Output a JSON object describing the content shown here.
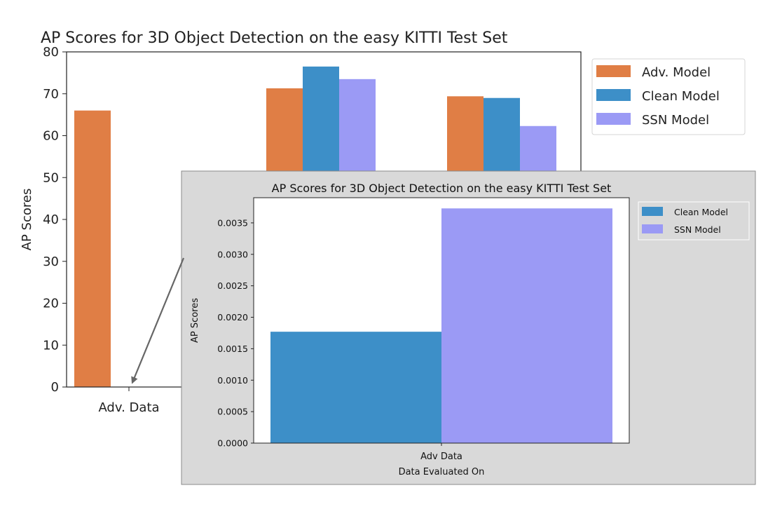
{
  "main_chart": {
    "type": "bar",
    "title": "AP Scores for 3D Object Detection on the easy KITTI Test Set",
    "ylabel": "AP Scores",
    "ylim": [
      0,
      80
    ],
    "yticks": [
      0,
      10,
      20,
      30,
      40,
      50,
      60,
      70,
      80
    ],
    "categories": [
      "Adv. Data",
      "",
      ""
    ],
    "series": [
      {
        "name": "Adv. Model",
        "color": "#e07e45",
        "values": [
          66.0,
          71.3,
          69.4
        ]
      },
      {
        "name": "Clean Model",
        "color": "#3d8fc8",
        "values": [
          0.00177,
          76.5,
          69.0
        ]
      },
      {
        "name": "SSN Model",
        "color": "#9b9af5",
        "values": [
          0.00373,
          73.5,
          62.3
        ]
      }
    ],
    "legend_position": "outside-right"
  },
  "inset_chart": {
    "type": "bar",
    "title": "AP Scores for 3D Object Detection on the easy KITTI Test Set",
    "ylabel": "AP Scores",
    "xlabel": "Data Evaluated On",
    "category": "Adv Data",
    "ylim": [
      0,
      0.0039
    ],
    "yticks": [
      "0.0000",
      "0.0005",
      "0.0010",
      "0.0015",
      "0.0020",
      "0.0025",
      "0.0030",
      "0.0035"
    ],
    "series": [
      {
        "name": "Clean Model",
        "color": "#3d8fc8",
        "value": 0.00177
      },
      {
        "name": "SSN Model",
        "color": "#9b9af5",
        "value": 0.00373
      }
    ],
    "legend_position": "outside-right",
    "background": "#d9d9d9"
  },
  "chart_data": [
    {
      "type": "bar",
      "title": "AP Scores for 3D Object Detection on the easy KITTI Test Set",
      "ylabel": "AP Scores",
      "ylim": [
        0,
        80
      ],
      "categories": [
        "Adv. Data",
        "",
        ""
      ],
      "series": [
        {
          "name": "Adv. Model",
          "values": [
            66.0,
            71.3,
            69.4
          ]
        },
        {
          "name": "Clean Model",
          "values": [
            0.00177,
            76.5,
            69.0
          ]
        },
        {
          "name": "SSN Model",
          "values": [
            0.00373,
            73.5,
            62.3
          ]
        }
      ]
    },
    {
      "type": "bar",
      "title": "AP Scores for 3D Object Detection on the easy KITTI Test Set",
      "xlabel": "Data Evaluated On",
      "ylabel": "AP Scores",
      "ylim": [
        0,
        0.0039
      ],
      "categories": [
        "Adv Data"
      ],
      "series": [
        {
          "name": "Clean Model",
          "values": [
            0.00177
          ]
        },
        {
          "name": "SSN Model",
          "values": [
            0.00373
          ]
        }
      ]
    }
  ]
}
